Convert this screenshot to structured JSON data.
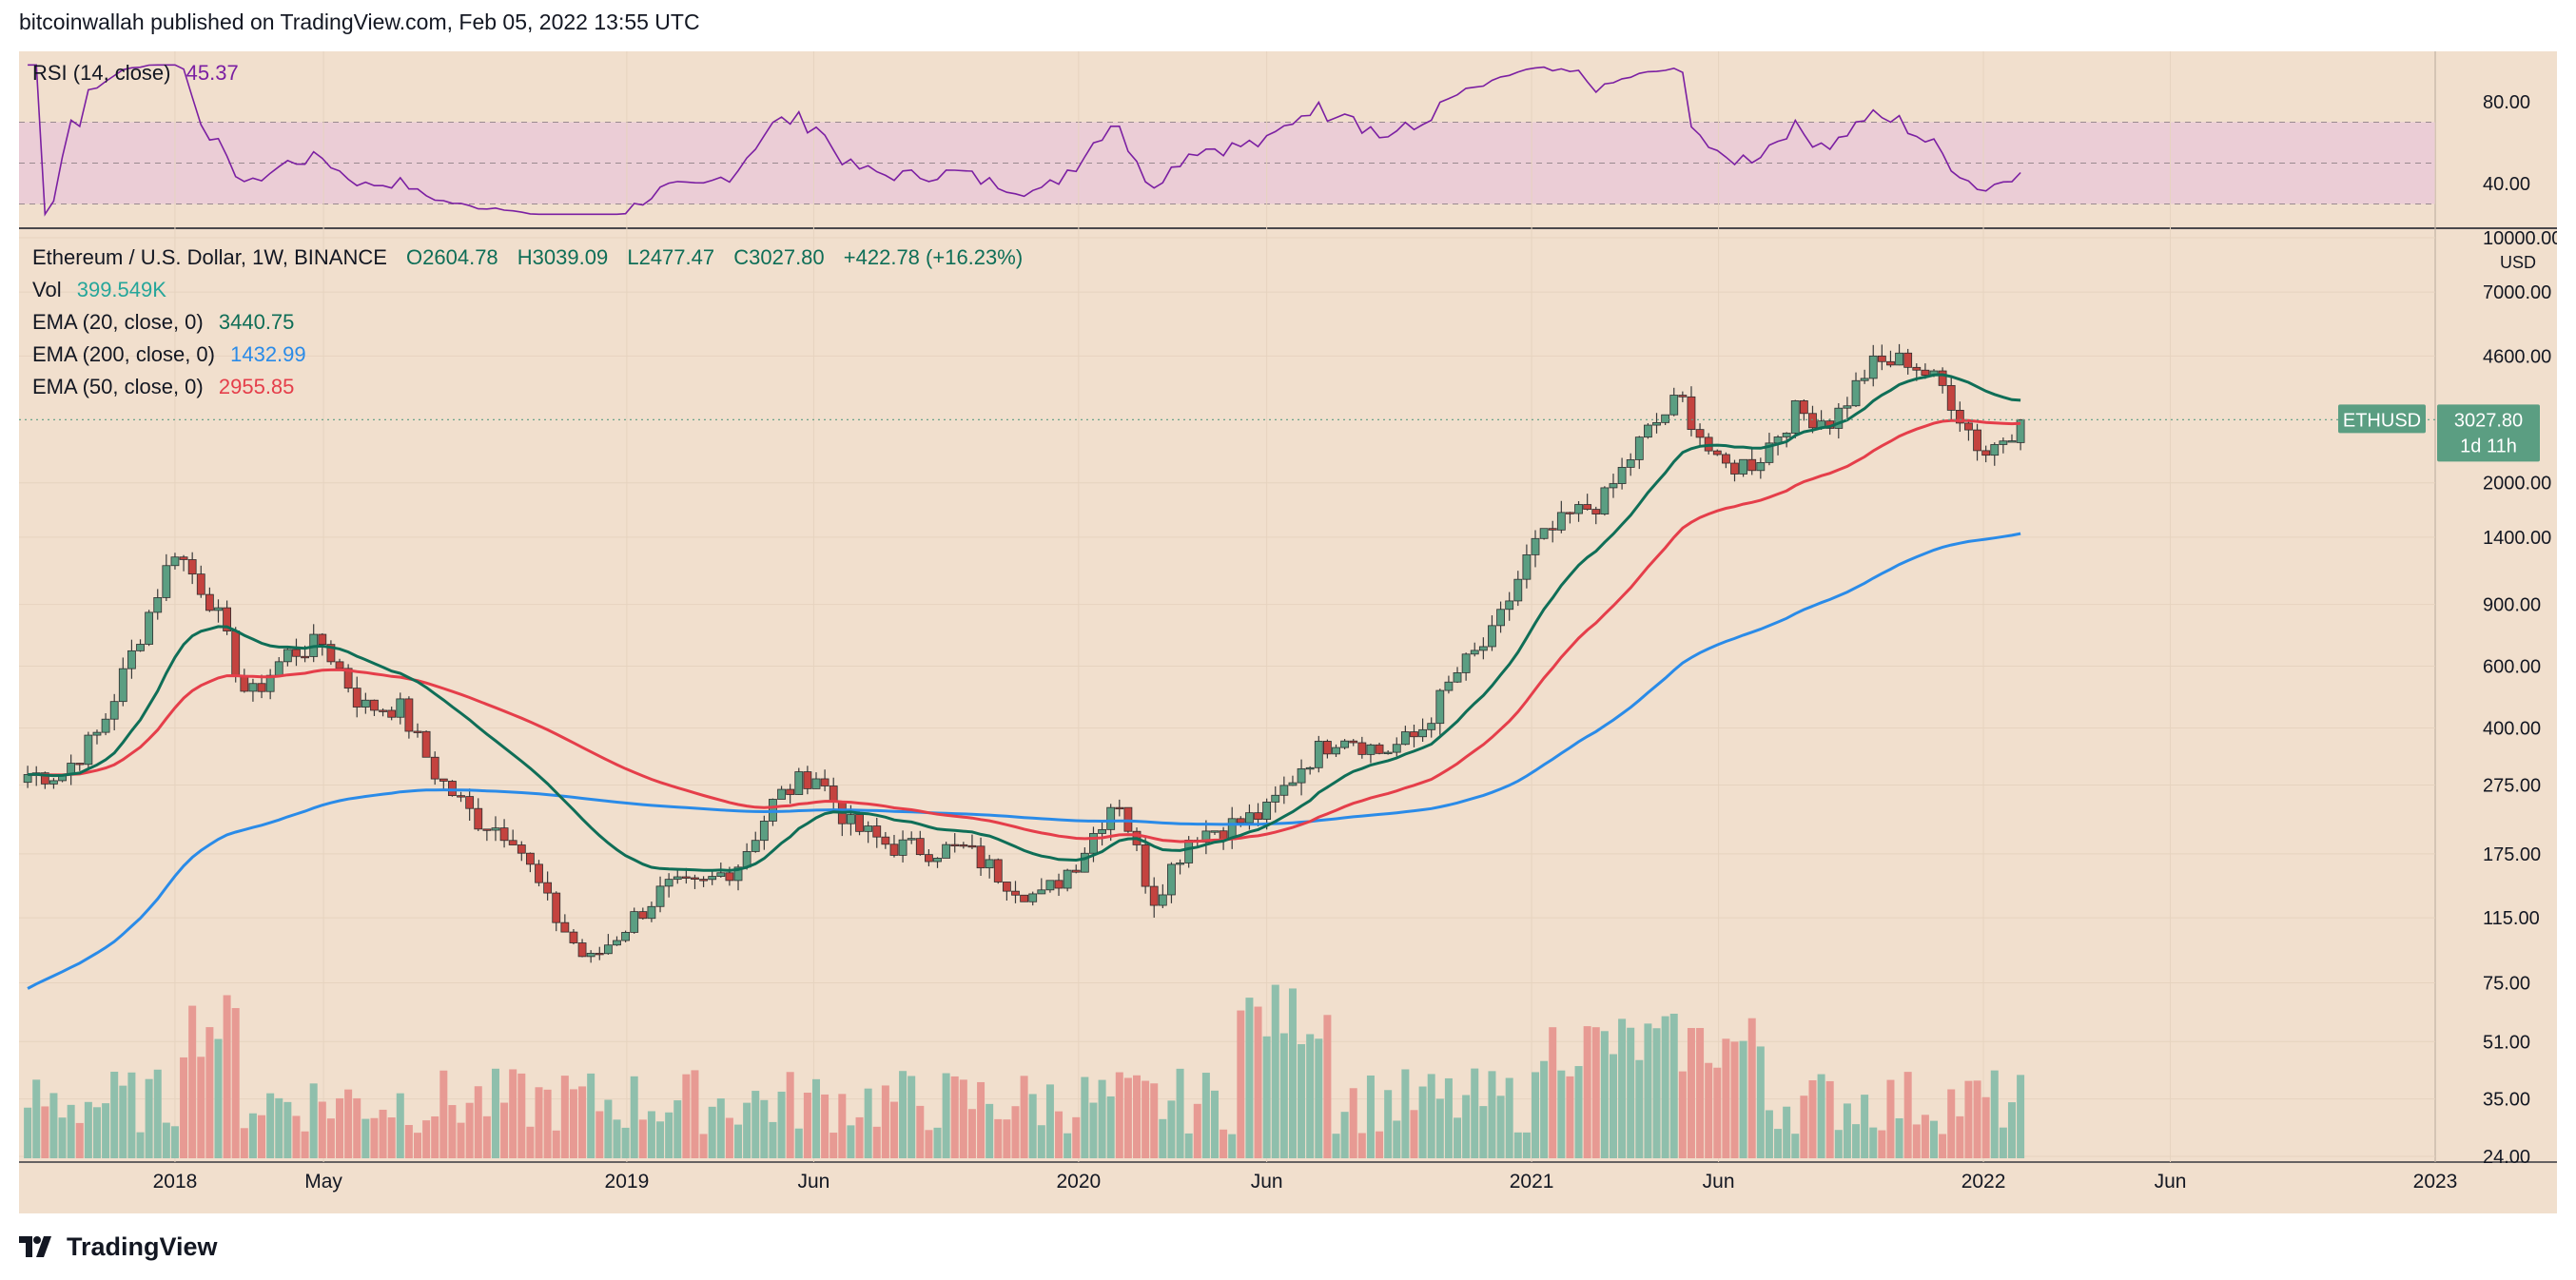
{
  "header": {
    "text": "bitcoinwallah published on TradingView.com, Feb 05, 2022 13:55 UTC"
  },
  "footer": {
    "brand": "TradingView"
  },
  "colors": {
    "bg": "#f1dfcd",
    "up": "#5b9e82",
    "down": "#c4433f",
    "ema20": "#0f6e57",
    "ema50": "#e53e4a",
    "ema200": "#2a8be8",
    "rsi": "#7b1fa2",
    "rsi_band": "#e8c7d8",
    "vol_up": "#8fbfac",
    "vol_down": "#e79a93"
  },
  "rsi_panel": {
    "label": "RSI (14, close)",
    "value": "45.37",
    "ticks": [
      "80.00",
      "40.00"
    ]
  },
  "main_panel": {
    "symbol": "Ethereum / U.S. Dollar, 1W, BINANCE",
    "open": "O2604.78",
    "high": "H3039.09",
    "low": "L2477.47",
    "close": "C3027.80",
    "change": "+422.78 (+16.23%)",
    "vol_label": "Vol",
    "vol_value": "399.549K",
    "ema20_label": "EMA (20, close, 0)",
    "ema20_value": "3440.75",
    "ema200_label": "EMA (200, close, 0)",
    "ema200_value": "1432.99",
    "ema50_label": "EMA (50, close, 0)",
    "ema50_value": "2955.85",
    "price_tag": {
      "symbol": "ETHUSD",
      "price": "3027.80",
      "countdown": "1d 11h"
    },
    "currency": "USD"
  },
  "chart_data": {
    "type": "candlestick",
    "scale": "log",
    "y_ticks": [
      "10000.00",
      "7000.00",
      "4600.00",
      "2000.00",
      "1400.00",
      "900.00",
      "600.00",
      "400.00",
      "275.00",
      "175.00",
      "115.00",
      "75.00",
      "51.00",
      "35.00",
      "24.00"
    ],
    "x_ticks": [
      "2018",
      "May",
      "2019",
      "Jun",
      "2020",
      "Jun",
      "2021",
      "Jun",
      "2022",
      "Jun",
      "2023"
    ],
    "price_keypoints": [
      [
        "2017-10",
        295
      ],
      [
        "2017-11",
        390
      ],
      [
        "2017-12",
        700
      ],
      [
        "2018-01",
        1300
      ],
      [
        "2018-02",
        900
      ],
      [
        "2018-03",
        480
      ],
      [
        "2018-04",
        650
      ],
      [
        "2018-05",
        700
      ],
      [
        "2018-06",
        460
      ],
      [
        "2018-07",
        460
      ],
      [
        "2018-08",
        290
      ],
      [
        "2018-09",
        220
      ],
      [
        "2018-10",
        200
      ],
      [
        "2018-11",
        120
      ],
      [
        "2018-12",
        85
      ],
      [
        "2019-01",
        110
      ],
      [
        "2019-02",
        140
      ],
      [
        "2019-03",
        140
      ],
      [
        "2019-04",
        165
      ],
      [
        "2019-05",
        250
      ],
      [
        "2019-06",
        300
      ],
      [
        "2019-07",
        210
      ],
      [
        "2019-08",
        185
      ],
      [
        "2019-09",
        180
      ],
      [
        "2019-10",
        180
      ],
      [
        "2019-11",
        150
      ],
      [
        "2019-12",
        130
      ],
      [
        "2020-01",
        170
      ],
      [
        "2020-02",
        260
      ],
      [
        "2020-03",
        130
      ],
      [
        "2020-04",
        200
      ],
      [
        "2020-05",
        210
      ],
      [
        "2020-06",
        230
      ],
      [
        "2020-07",
        320
      ],
      [
        "2020-08",
        390
      ],
      [
        "2020-09",
        340
      ],
      [
        "2020-10",
        380
      ],
      [
        "2020-11",
        570
      ],
      [
        "2020-12",
        735
      ],
      [
        "2021-01",
        1300
      ],
      [
        "2021-02",
        1600
      ],
      [
        "2021-03",
        1800
      ],
      [
        "2021-04",
        2700
      ],
      [
        "2021-05",
        3500
      ],
      [
        "2021-06",
        2200
      ],
      [
        "2021-07",
        2300
      ],
      [
        "2021-08",
        3200
      ],
      [
        "2021-09",
        3000
      ],
      [
        "2021-10",
        4300
      ],
      [
        "2021-11",
        4500
      ],
      [
        "2021-12",
        3700
      ],
      [
        "2022-01",
        2400
      ],
      [
        "2022-02",
        3028
      ]
    ],
    "last_candle": {
      "open": 2604.78,
      "high": 3039.09,
      "low": 2477.47,
      "close": 3027.8
    },
    "ema_last": {
      "ema20": 3440.75,
      "ema50": 2955.85,
      "ema200": 1432.99
    },
    "volume_last": "399.549K",
    "rsi_last": 45.37,
    "rsi_range": [
      20,
      100
    ]
  }
}
